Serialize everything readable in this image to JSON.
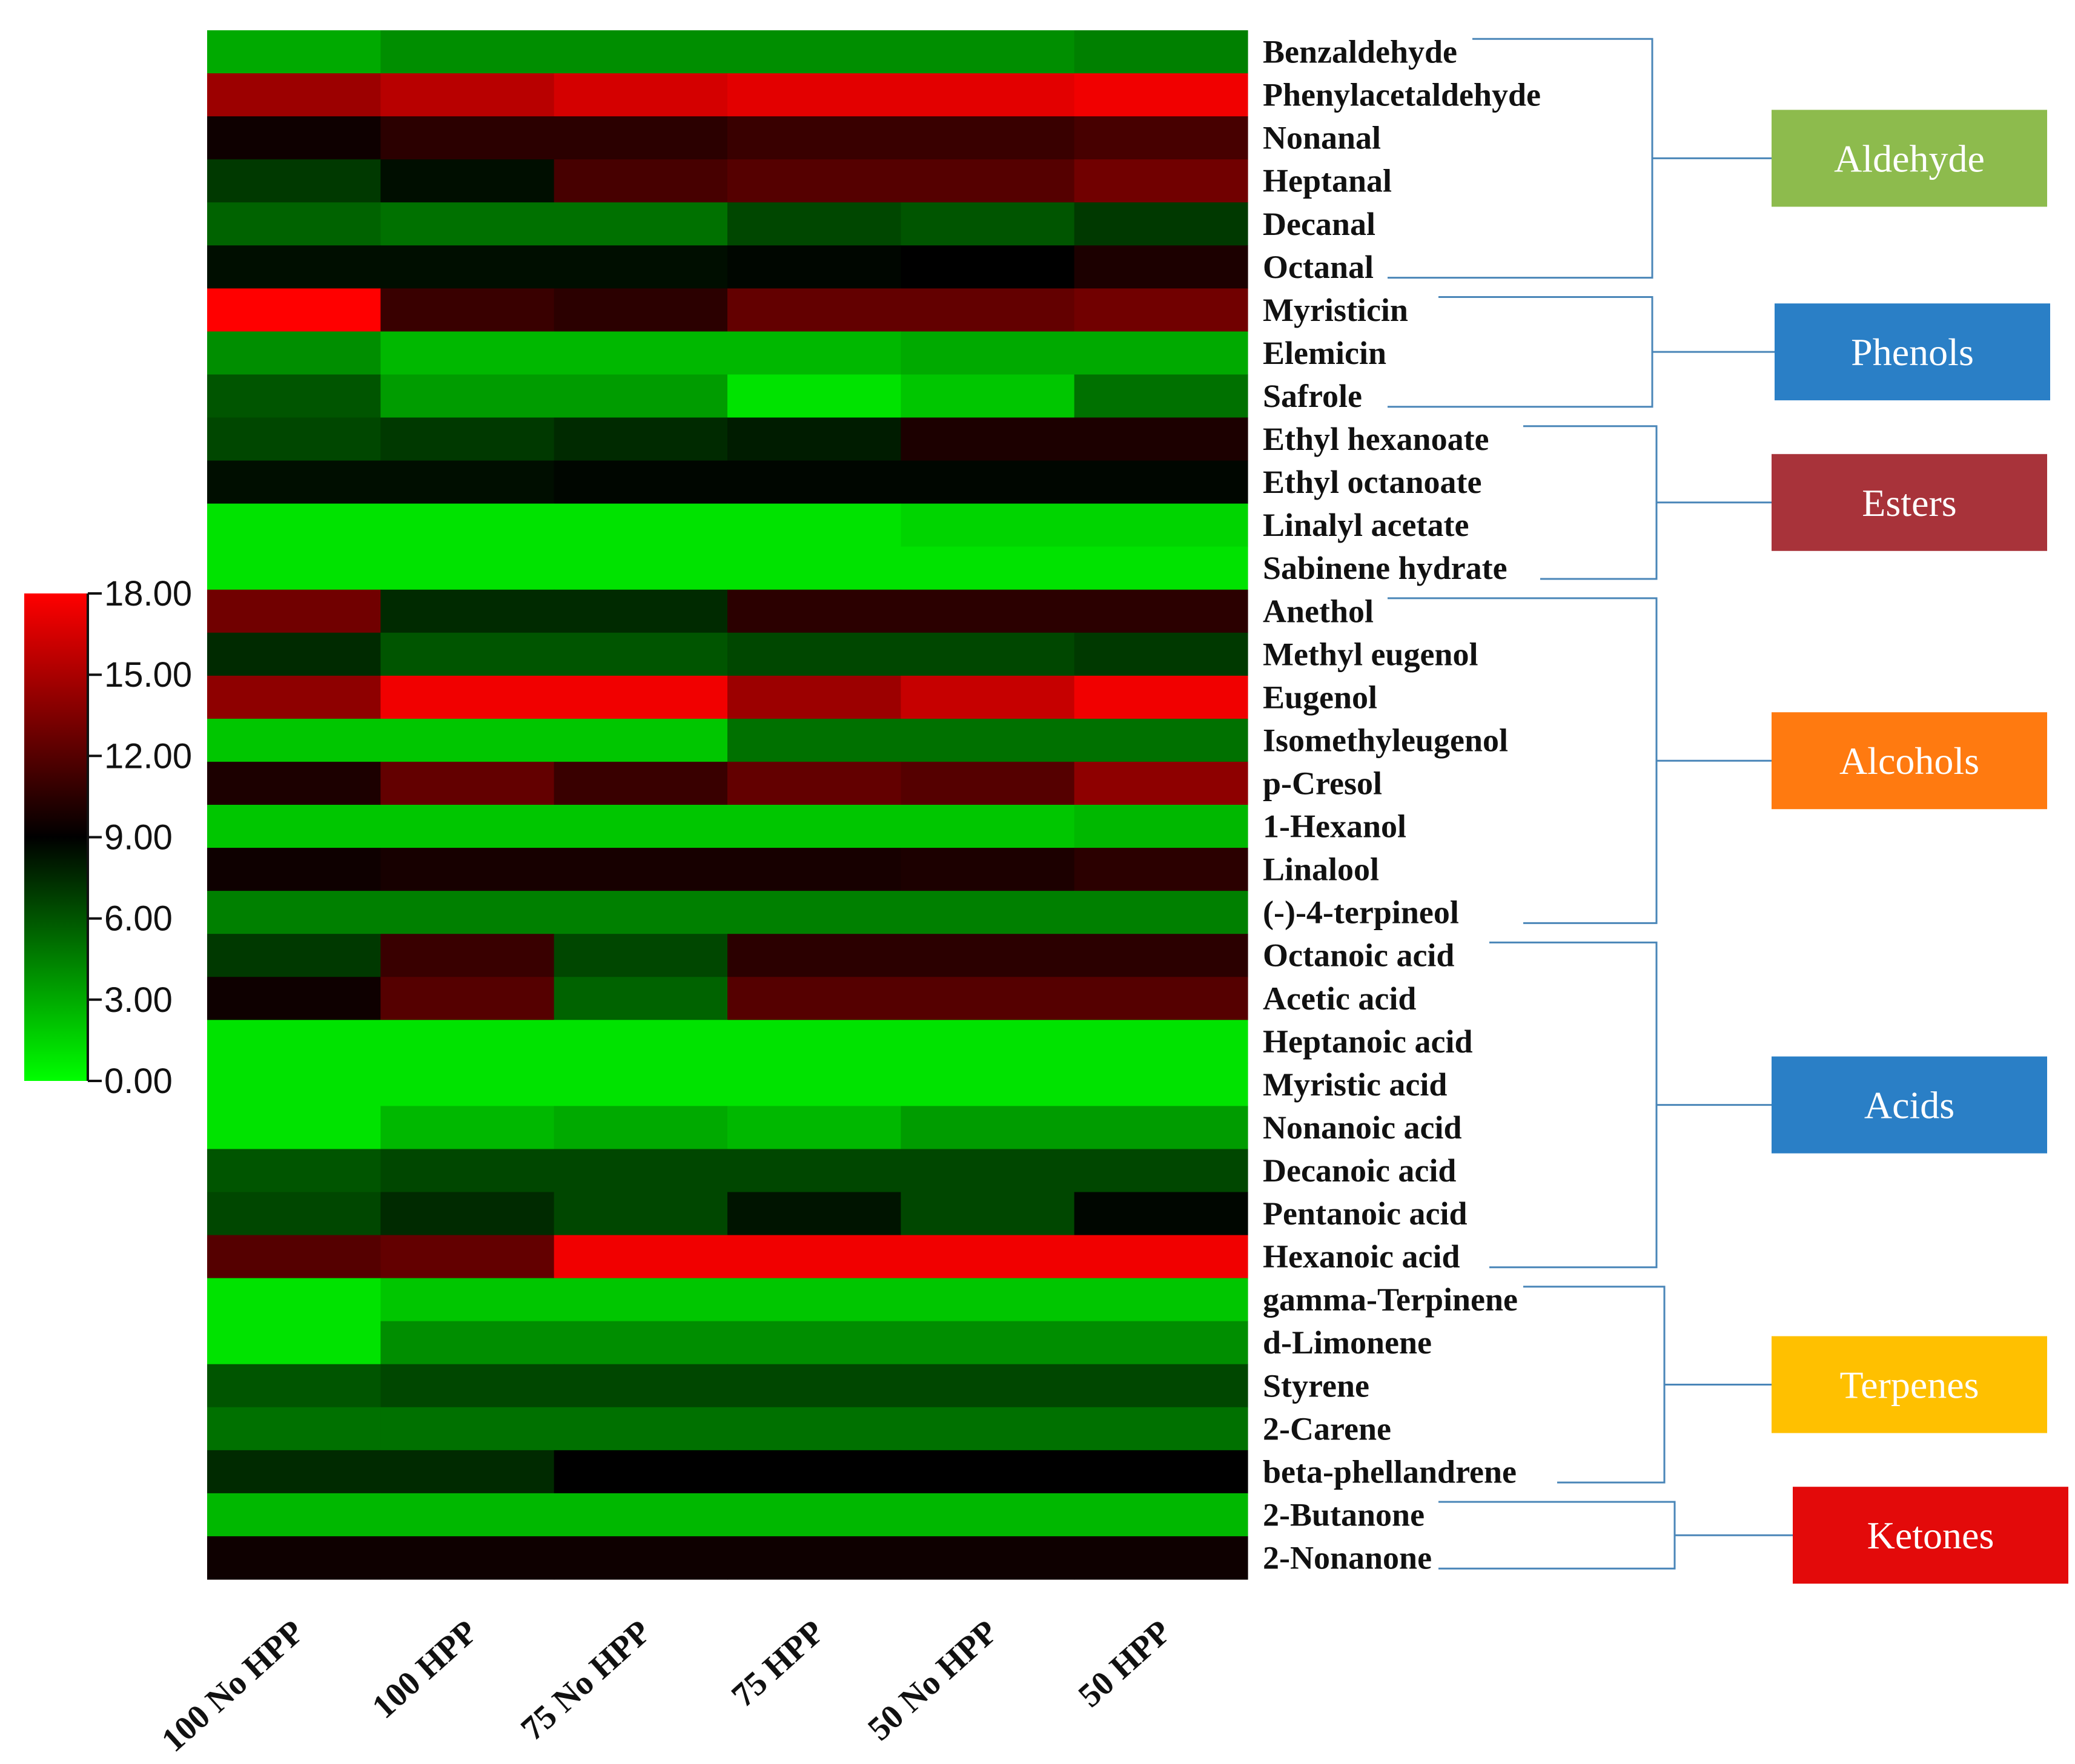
{
  "chart_data": {
    "type": "heatmap",
    "columns": [
      "100 No HPP",
      "100  HPP",
      "75 No HPP",
      "75 HPP",
      "50 No HPP",
      "50 HPP"
    ],
    "rows": [
      {
        "name": "Benzaldehyde",
        "values": [
          3.0,
          4.0,
          4.0,
          4.0,
          4.0,
          4.5
        ]
      },
      {
        "name": "Phenylacetaldehyde",
        "values": [
          14.5,
          15.5,
          16.5,
          17.0,
          17.0,
          17.5
        ]
      },
      {
        "name": "Nonanal",
        "values": [
          9.5,
          10.5,
          10.5,
          11.0,
          11.0,
          11.5
        ]
      },
      {
        "name": "Heptanal",
        "values": [
          7.0,
          8.5,
          11.5,
          12.0,
          12.0,
          13.0
        ]
      },
      {
        "name": "Decanal",
        "values": [
          5.5,
          5.0,
          5.0,
          6.5,
          6.0,
          7.0
        ]
      },
      {
        "name": "Octanal",
        "values": [
          8.5,
          8.5,
          8.5,
          8.8,
          9.0,
          10.0
        ]
      },
      {
        "name": "Myristicin",
        "values": [
          18.0,
          11.0,
          10.5,
          12.5,
          12.5,
          13.0
        ]
      },
      {
        "name": "Elemicin",
        "values": [
          4.0,
          2.5,
          2.5,
          2.5,
          3.0,
          3.0
        ]
      },
      {
        "name": "Safrole",
        "values": [
          6.0,
          3.5,
          3.5,
          1.0,
          2.0,
          5.0
        ]
      },
      {
        "name": "Ethyl hexanoate",
        "values": [
          6.5,
          7.0,
          7.5,
          8.0,
          10.0,
          10.0
        ]
      },
      {
        "name": "Ethyl octanoate",
        "values": [
          8.5,
          8.5,
          8.8,
          8.8,
          8.8,
          8.8
        ]
      },
      {
        "name": "Linalyl acetate",
        "values": [
          1.0,
          1.0,
          1.0,
          1.0,
          1.5,
          1.5
        ]
      },
      {
        "name": "Sabinene hydrate",
        "values": [
          1.0,
          1.0,
          1.0,
          1.0,
          1.0,
          1.0
        ]
      },
      {
        "name": "Anethol",
        "values": [
          13.0,
          7.5,
          7.5,
          10.5,
          10.5,
          10.5
        ]
      },
      {
        "name": "Methyl eugenol",
        "values": [
          7.5,
          6.0,
          6.0,
          6.5,
          6.5,
          7.0
        ]
      },
      {
        "name": "Eugenol",
        "values": [
          14.0,
          17.5,
          17.5,
          14.5,
          16.0,
          17.5
        ]
      },
      {
        "name": "Isomethyleugenol",
        "values": [
          2.0,
          2.0,
          2.0,
          5.0,
          5.0,
          5.0
        ]
      },
      {
        "name": "p-Cresol",
        "values": [
          10.0,
          12.5,
          11.0,
          12.5,
          12.0,
          14.0
        ]
      },
      {
        "name": "1-Hexanol",
        "values": [
          2.0,
          2.0,
          2.0,
          2.0,
          2.0,
          2.5
        ]
      },
      {
        "name": "Linalool",
        "values": [
          9.5,
          9.8,
          9.8,
          9.8,
          10.0,
          10.5
        ]
      },
      {
        "name": "(-)-4-terpineol",
        "values": [
          4.5,
          4.5,
          4.5,
          4.5,
          4.5,
          4.5
        ]
      },
      {
        "name": "Octanoic acid",
        "values": [
          7.0,
          11.0,
          6.5,
          10.5,
          10.5,
          10.5
        ]
      },
      {
        "name": "Acetic acid",
        "values": [
          9.5,
          12.0,
          5.5,
          12.0,
          12.0,
          12.0
        ]
      },
      {
        "name": "Heptanoic acid",
        "values": [
          1.0,
          1.0,
          1.0,
          1.0,
          1.0,
          1.0
        ]
      },
      {
        "name": "Myristic acid",
        "values": [
          1.0,
          1.0,
          1.0,
          1.0,
          1.0,
          1.0
        ]
      },
      {
        "name": "Nonanoic acid",
        "values": [
          1.0,
          2.5,
          3.0,
          2.5,
          3.5,
          3.5
        ]
      },
      {
        "name": "Decanoic acid",
        "values": [
          6.0,
          6.5,
          6.5,
          6.5,
          6.5,
          6.5
        ]
      },
      {
        "name": "Pentanoic acid",
        "values": [
          6.5,
          7.5,
          6.5,
          8.3,
          6.5,
          8.8
        ]
      },
      {
        "name": "Hexanoic acid",
        "values": [
          12.0,
          12.5,
          17.5,
          17.5,
          17.5,
          17.5
        ]
      },
      {
        "name": "gamma-Terpinene",
        "values": [
          1.0,
          2.0,
          2.0,
          2.0,
          2.0,
          2.0
        ]
      },
      {
        "name": "d-Limonene",
        "values": [
          1.0,
          4.0,
          4.0,
          4.0,
          4.0,
          4.0
        ]
      },
      {
        "name": "Styrene",
        "values": [
          6.0,
          6.5,
          6.5,
          6.5,
          6.5,
          6.5
        ]
      },
      {
        "name": "2-Carene",
        "values": [
          5.0,
          5.0,
          5.0,
          5.0,
          5.0,
          5.0
        ]
      },
      {
        "name": "beta-phellandrene",
        "values": [
          7.5,
          7.5,
          9.0,
          9.0,
          9.0,
          9.0
        ]
      },
      {
        "name": "2-Butanone",
        "values": [
          2.5,
          2.5,
          2.5,
          2.5,
          2.5,
          2.5
        ]
      },
      {
        "name": "2-Nonanone",
        "values": [
          9.5,
          9.5,
          9.5,
          9.5,
          9.5,
          9.5
        ]
      }
    ],
    "colorbar": {
      "min": 0,
      "max": 18,
      "ticks": [
        "18.00",
        "15.00",
        "12.00",
        "9.00",
        "6.00",
        "3.00",
        "0.00"
      ],
      "colors": {
        "low": "#00ff00",
        "mid": "#000000",
        "high": "#ff0000"
      }
    },
    "groups": [
      {
        "label": "Aldehyde",
        "first_row": 0,
        "last_row": 5,
        "color": "#8dbb4d"
      },
      {
        "label": "Phenols",
        "first_row": 6,
        "last_row": 8,
        "color": "#2a7fc6"
      },
      {
        "label": "Esters",
        "first_row": 9,
        "last_row": 12,
        "color": "#a8333a"
      },
      {
        "label": "Alcohols",
        "first_row": 13,
        "last_row": 20,
        "color": "#ff7a10"
      },
      {
        "label": "Acids",
        "first_row": 21,
        "last_row": 28,
        "color": "#2a7fc6"
      },
      {
        "label": "Terpenes",
        "first_row": 29,
        "last_row": 33,
        "color": "#ffc000"
      },
      {
        "label": "Ketones",
        "first_row": 34,
        "last_row": 35,
        "color": "#e30a0a"
      }
    ]
  }
}
